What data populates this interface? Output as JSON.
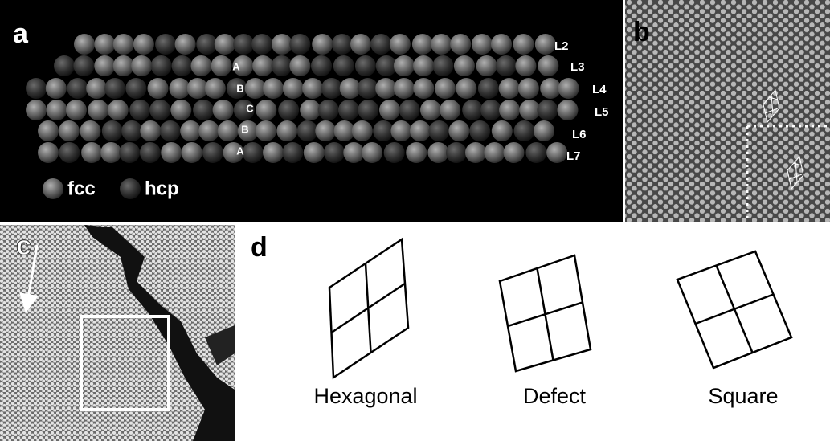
{
  "panels": {
    "a": {
      "label": "a",
      "layers": [
        "L2",
        "L3",
        "L4",
        "L5",
        "L6",
        "L7"
      ],
      "stacking": [
        "A",
        "B",
        "C",
        "B",
        "A"
      ],
      "legend": [
        "fcc",
        "hcp"
      ]
    },
    "b": {
      "label": "b"
    },
    "c": {
      "label": "c"
    },
    "d": {
      "label": "d",
      "lattices": [
        "Hexagonal",
        "Defect",
        "Square"
      ]
    }
  }
}
